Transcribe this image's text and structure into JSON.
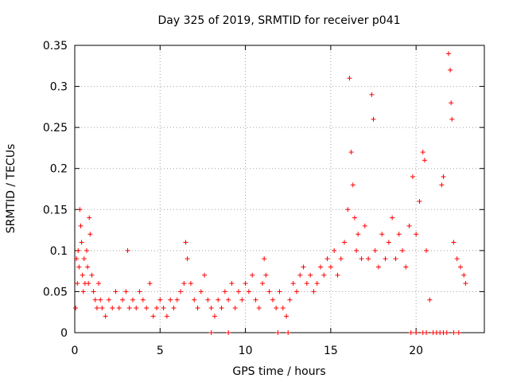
{
  "chart_data": {
    "type": "scatter",
    "title": "Day 325 of 2019, SRMTID for receiver p041",
    "xlabel": "GPS time / hours",
    "ylabel": "SRMTID / TECUs",
    "xlim": [
      0,
      24
    ],
    "ylim": [
      0,
      0.35
    ],
    "x_ticks": [
      0,
      5,
      10,
      15,
      20
    ],
    "x_tick_labels": [
      "0",
      "5",
      "10",
      "15",
      "20"
    ],
    "y_ticks": [
      0,
      0.05,
      0.1,
      0.15,
      0.2,
      0.25,
      0.3,
      0.35
    ],
    "y_tick_labels": [
      "0",
      "0.05",
      "0.1",
      "0.15",
      "0.2",
      "0.25",
      "0.3",
      "0.35"
    ],
    "grid": true,
    "marker": "+",
    "color": "#ff0000",
    "series": [
      {
        "name": "SRMTID",
        "points": [
          [
            0.05,
            0.03
          ],
          [
            0.1,
            0.09
          ],
          [
            0.15,
            0.06
          ],
          [
            0.2,
            0.1
          ],
          [
            0.25,
            0.08
          ],
          [
            0.3,
            0.15
          ],
          [
            0.35,
            0.13
          ],
          [
            0.4,
            0.11
          ],
          [
            0.45,
            0.07
          ],
          [
            0.5,
            0.05
          ],
          [
            0.55,
            0.09
          ],
          [
            0.6,
            0.06
          ],
          [
            0.7,
            0.1
          ],
          [
            0.75,
            0.08
          ],
          [
            0.8,
            0.06
          ],
          [
            0.85,
            0.14
          ],
          [
            0.9,
            0.12
          ],
          [
            1.0,
            0.07
          ],
          [
            1.1,
            0.05
          ],
          [
            1.2,
            0.04
          ],
          [
            1.3,
            0.03
          ],
          [
            1.4,
            0.06
          ],
          [
            1.5,
            0.04
          ],
          [
            1.6,
            0.03
          ],
          [
            1.8,
            0.02
          ],
          [
            2.0,
            0.04
          ],
          [
            2.2,
            0.03
          ],
          [
            2.4,
            0.05
          ],
          [
            2.6,
            0.03
          ],
          [
            2.8,
            0.04
          ],
          [
            3.0,
            0.05
          ],
          [
            3.1,
            0.1
          ],
          [
            3.2,
            0.03
          ],
          [
            3.4,
            0.04
          ],
          [
            3.6,
            0.03
          ],
          [
            3.8,
            0.05
          ],
          [
            4.0,
            0.04
          ],
          [
            4.2,
            0.03
          ],
          [
            4.4,
            0.06
          ],
          [
            4.6,
            0.02
          ],
          [
            4.8,
            0.03
          ],
          [
            5.0,
            0.04
          ],
          [
            5.2,
            0.03
          ],
          [
            5.4,
            0.02
          ],
          [
            5.6,
            0.04
          ],
          [
            5.8,
            0.03
          ],
          [
            6.0,
            0.04
          ],
          [
            6.2,
            0.05
          ],
          [
            6.4,
            0.06
          ],
          [
            6.5,
            0.11
          ],
          [
            6.6,
            0.09
          ],
          [
            6.8,
            0.06
          ],
          [
            7.0,
            0.04
          ],
          [
            7.2,
            0.03
          ],
          [
            7.4,
            0.05
          ],
          [
            7.6,
            0.07
          ],
          [
            7.8,
            0.04
          ],
          [
            8.0,
            0.03
          ],
          [
            8.2,
            0.02
          ],
          [
            8.4,
            0.04
          ],
          [
            8.6,
            0.03
          ],
          [
            8.8,
            0.05
          ],
          [
            9.0,
            0.04
          ],
          [
            9.2,
            0.06
          ],
          [
            9.4,
            0.03
          ],
          [
            9.6,
            0.05
          ],
          [
            9.8,
            0.04
          ],
          [
            10.0,
            0.06
          ],
          [
            10.2,
            0.05
          ],
          [
            10.4,
            0.07
          ],
          [
            10.6,
            0.04
          ],
          [
            10.8,
            0.03
          ],
          [
            11.0,
            0.06
          ],
          [
            11.1,
            0.09
          ],
          [
            11.2,
            0.07
          ],
          [
            11.4,
            0.05
          ],
          [
            11.6,
            0.04
          ],
          [
            11.8,
            0.03
          ],
          [
            12.0,
            0.05
          ],
          [
            12.2,
            0.03
          ],
          [
            12.4,
            0.02
          ],
          [
            12.6,
            0.04
          ],
          [
            12.8,
            0.06
          ],
          [
            13.0,
            0.05
          ],
          [
            13.2,
            0.07
          ],
          [
            13.4,
            0.08
          ],
          [
            13.6,
            0.06
          ],
          [
            13.8,
            0.07
          ],
          [
            14.0,
            0.05
          ],
          [
            14.2,
            0.06
          ],
          [
            14.4,
            0.08
          ],
          [
            14.6,
            0.07
          ],
          [
            14.8,
            0.09
          ],
          [
            15.0,
            0.08
          ],
          [
            15.2,
            0.1
          ],
          [
            15.4,
            0.07
          ],
          [
            15.6,
            0.09
          ],
          [
            15.8,
            0.11
          ],
          [
            16.0,
            0.15
          ],
          [
            16.1,
            0.31
          ],
          [
            16.2,
            0.22
          ],
          [
            16.3,
            0.18
          ],
          [
            16.4,
            0.14
          ],
          [
            16.5,
            0.1
          ],
          [
            16.6,
            0.12
          ],
          [
            16.8,
            0.09
          ],
          [
            17.0,
            0.13
          ],
          [
            17.2,
            0.09
          ],
          [
            17.4,
            0.29
          ],
          [
            17.5,
            0.26
          ],
          [
            17.6,
            0.1
          ],
          [
            17.8,
            0.08
          ],
          [
            18.0,
            0.12
          ],
          [
            18.2,
            0.09
          ],
          [
            18.4,
            0.11
          ],
          [
            18.6,
            0.14
          ],
          [
            18.8,
            0.09
          ],
          [
            19.0,
            0.12
          ],
          [
            19.2,
            0.1
          ],
          [
            19.4,
            0.08
          ],
          [
            19.6,
            0.13
          ],
          [
            19.8,
            0.19
          ],
          [
            20.0,
            0.12
          ],
          [
            20.2,
            0.16
          ],
          [
            20.4,
            0.22
          ],
          [
            20.5,
            0.21
          ],
          [
            20.6,
            0.1
          ],
          [
            20.8,
            0.04
          ],
          [
            21.0,
            0.0
          ],
          [
            21.5,
            0.18
          ],
          [
            21.6,
            0.19
          ],
          [
            21.9,
            0.34
          ],
          [
            22.0,
            0.32
          ],
          [
            22.05,
            0.28
          ],
          [
            22.1,
            0.26
          ],
          [
            22.2,
            0.11
          ],
          [
            22.4,
            0.09
          ],
          [
            22.6,
            0.08
          ],
          [
            22.8,
            0.07
          ],
          [
            22.9,
            0.06
          ],
          [
            8.0,
            0.0
          ],
          [
            9.0,
            0.0
          ],
          [
            11.9,
            0.0
          ],
          [
            12.5,
            0.0
          ],
          [
            19.7,
            0.0
          ],
          [
            20.0,
            0.0
          ],
          [
            20.4,
            0.0
          ],
          [
            20.6,
            0.0
          ],
          [
            21.2,
            0.0
          ],
          [
            21.4,
            0.0
          ],
          [
            21.6,
            0.0
          ],
          [
            21.8,
            0.0
          ],
          [
            22.2,
            0.0
          ],
          [
            22.5,
            0.0
          ]
        ]
      }
    ]
  }
}
